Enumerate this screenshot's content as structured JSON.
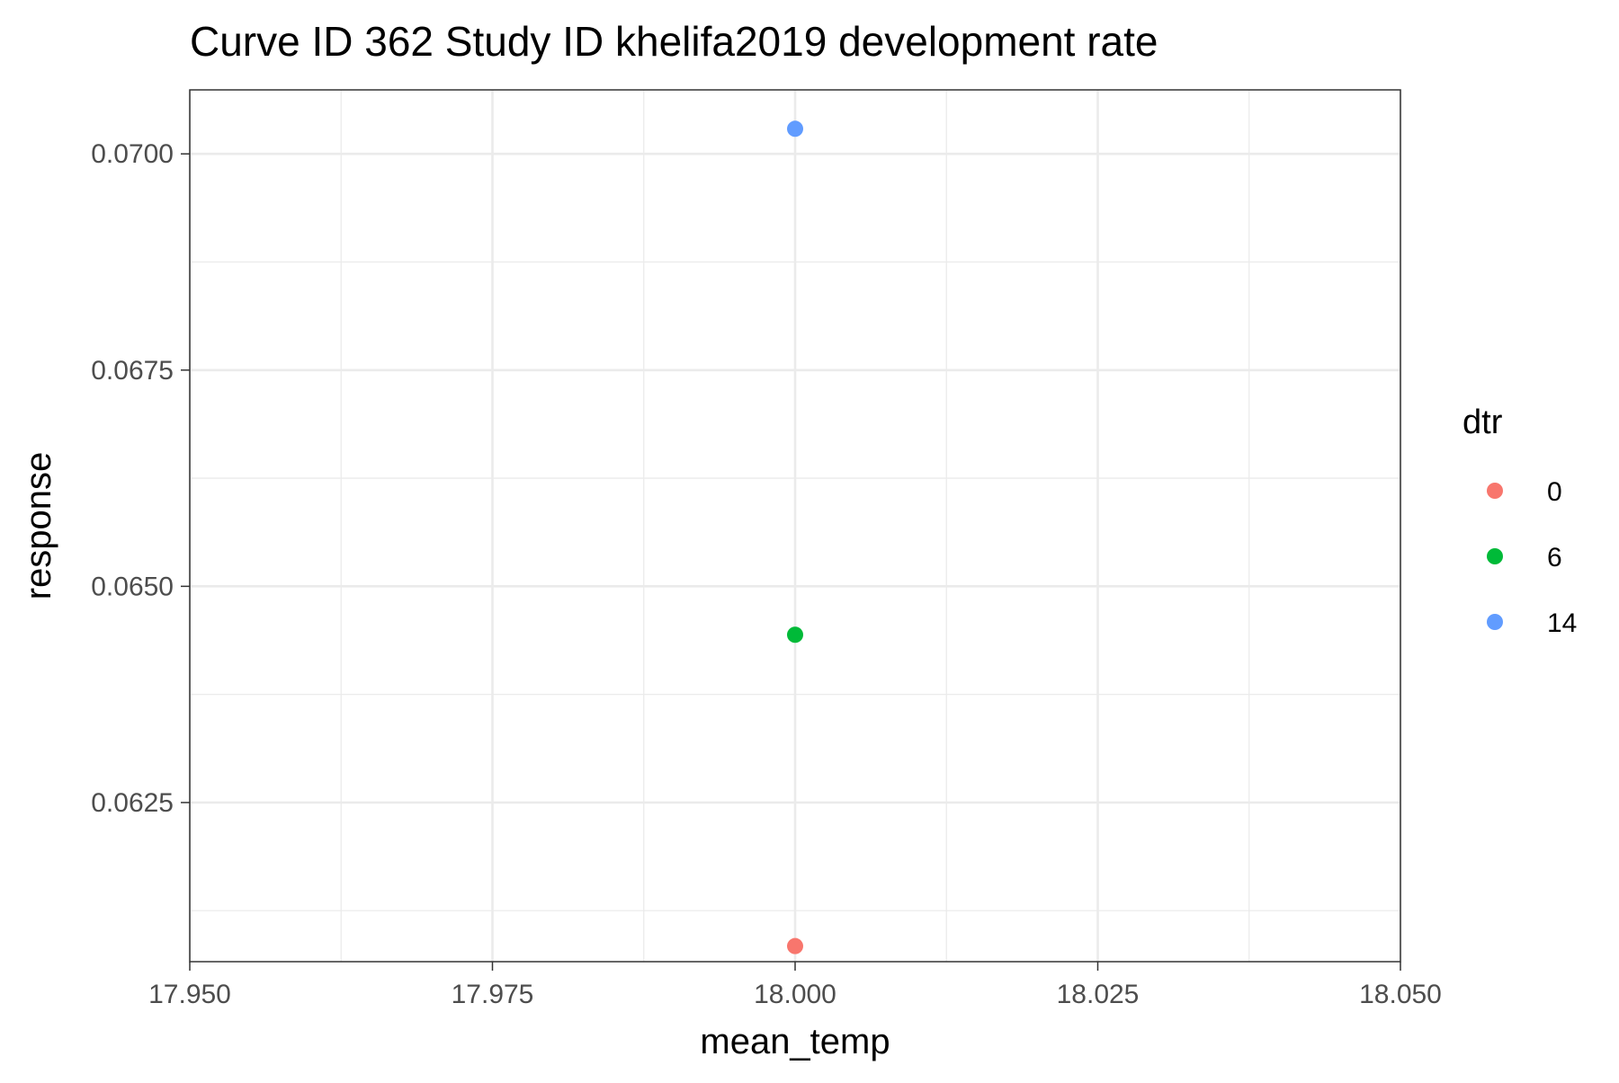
{
  "chart_data": {
    "type": "scatter",
    "title": "Curve ID 362 Study ID khelifa2019 development rate",
    "xlabel": "mean_temp",
    "ylabel": "response",
    "xlim": [
      17.95,
      18.05
    ],
    "ylim": [
      0.06066,
      0.07074
    ],
    "x_ticks": [
      17.95,
      17.975,
      18.0,
      18.025,
      18.05
    ],
    "x_tick_labels": [
      "17.950",
      "17.975",
      "18.000",
      "18.025",
      "18.050"
    ],
    "y_ticks": [
      0.0625,
      0.065,
      0.0675,
      0.07
    ],
    "y_tick_labels": [
      "0.0625",
      "0.0650",
      "0.0675",
      "0.0700"
    ],
    "grid": true,
    "legend": {
      "title": "dtr",
      "placement": "right",
      "entries": [
        {
          "label": "0",
          "color": "#F8766D"
        },
        {
          "label": "6",
          "color": "#00BA38"
        },
        {
          "label": "14",
          "color": "#619CFF"
        }
      ]
    },
    "series": [
      {
        "name": "0",
        "color": "#F8766D",
        "points": [
          {
            "x": 18.0,
            "y": 0.06084
          }
        ]
      },
      {
        "name": "6",
        "color": "#00BA38",
        "points": [
          {
            "x": 18.0,
            "y": 0.06444
          }
        ]
      },
      {
        "name": "14",
        "color": "#619CFF",
        "points": [
          {
            "x": 18.0,
            "y": 0.07029
          }
        ]
      }
    ]
  }
}
